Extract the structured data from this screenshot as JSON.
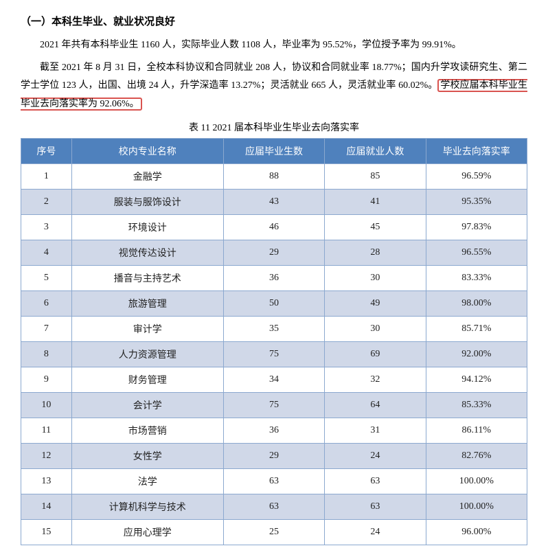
{
  "heading": "（一）本科生毕业、就业状况良好",
  "para1": "2021 年共有本科毕业生 1160 人，实际毕业人数 1108 人，毕业率为 95.52%，学位授予率为 99.91%。",
  "para2_before": "截至 2021 年 8 月 31 日，全校本科协议和合同就业 208 人，协议和合同就业率 18.77%；国内升学攻读研究生、第二学士学位 123 人，出国、出境 24 人，升学深造率 13.27%；灵活就业 665 人，灵活就业率 60.02%。",
  "para2_highlight": "学校应届本科毕业生毕业去向落实率为 92.06%。",
  "table_caption": "表 11   2021 届本科毕业生毕业去向落实率",
  "columns": [
    "序号",
    "校内专业名称",
    "应届毕业生数",
    "应届就业人数",
    "毕业去向落实率"
  ],
  "rows": [
    [
      "1",
      "金融学",
      "88",
      "85",
      "96.59%"
    ],
    [
      "2",
      "服装与服饰设计",
      "43",
      "41",
      "95.35%"
    ],
    [
      "3",
      "环境设计",
      "46",
      "45",
      "97.83%"
    ],
    [
      "4",
      "视觉传达设计",
      "29",
      "28",
      "96.55%"
    ],
    [
      "5",
      "播音与主持艺术",
      "36",
      "30",
      "83.33%"
    ],
    [
      "6",
      "旅游管理",
      "50",
      "49",
      "98.00%"
    ],
    [
      "7",
      "审计学",
      "35",
      "30",
      "85.71%"
    ],
    [
      "8",
      "人力资源管理",
      "75",
      "69",
      "92.00%"
    ],
    [
      "9",
      "财务管理",
      "34",
      "32",
      "94.12%"
    ],
    [
      "10",
      "会计学",
      "75",
      "64",
      "85.33%"
    ],
    [
      "11",
      "市场营销",
      "36",
      "31",
      "86.11%"
    ],
    [
      "12",
      "女性学",
      "29",
      "24",
      "82.76%"
    ],
    [
      "13",
      "法学",
      "63",
      "63",
      "100.00%"
    ],
    [
      "14",
      "计算机科学与技术",
      "63",
      "63",
      "100.00%"
    ],
    [
      "15",
      "应用心理学",
      "25",
      "24",
      "96.00%"
    ]
  ],
  "colors": {
    "header_bg": "#4f81bd",
    "row_alt_bg": "#d0d8e8",
    "border": "#8ba8cf",
    "highlight_border": "#d9534f"
  }
}
